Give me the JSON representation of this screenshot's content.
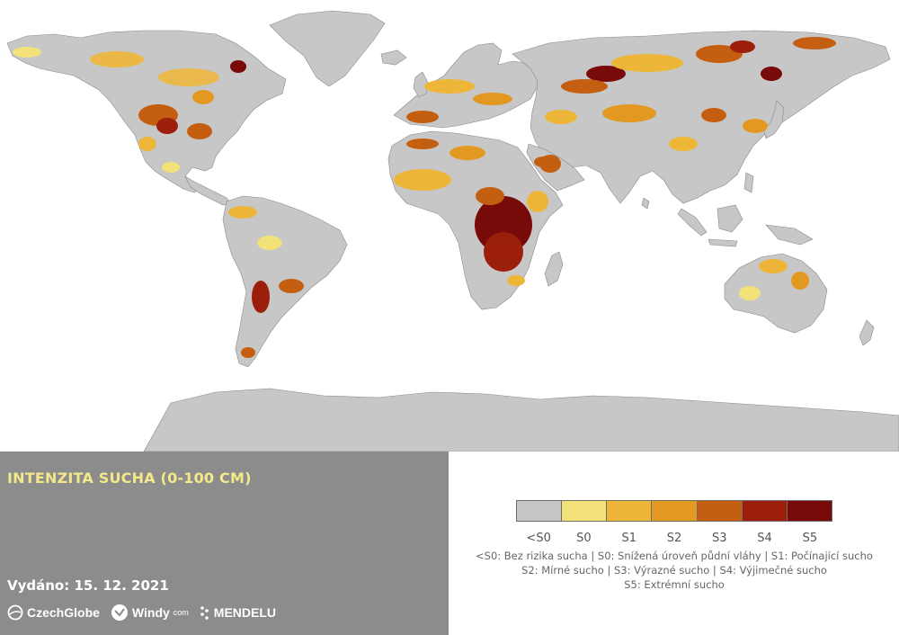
{
  "title": "INTENZITA SUCHA (0-100 CM)",
  "issued": "Vydáno: 15. 12. 2021",
  "logos": {
    "czechglobe": "CzechGlobe",
    "windy": "Windy",
    "windy_suffix": "com",
    "mendelu": "MENDELU"
  },
  "legend": {
    "classes": [
      {
        "label": "<S0",
        "color": "#c7c7c7"
      },
      {
        "label": "S0",
        "color": "#f3e27a"
      },
      {
        "label": "S1",
        "color": "#eeb638"
      },
      {
        "label": "S2",
        "color": "#e39821"
      },
      {
        "label": "S3",
        "color": "#c45f12"
      },
      {
        "label": "S4",
        "color": "#9c1f0b"
      },
      {
        "label": "S5",
        "color": "#780a0a"
      }
    ],
    "description_lines": [
      "<S0: Bez rizika sucha | S0: Snížená úroveň půdní vláhy | S1: Počínající sucho",
      "S2: Mírné sucho | S3: Výrazné sucho | S4: Výjimečné sucho",
      "S5: Extrémní sucho"
    ]
  },
  "map": {
    "land_color": "#c7c7c7",
    "outline_color": "#8a8a8a",
    "ocean_color": "#ffffff"
  }
}
